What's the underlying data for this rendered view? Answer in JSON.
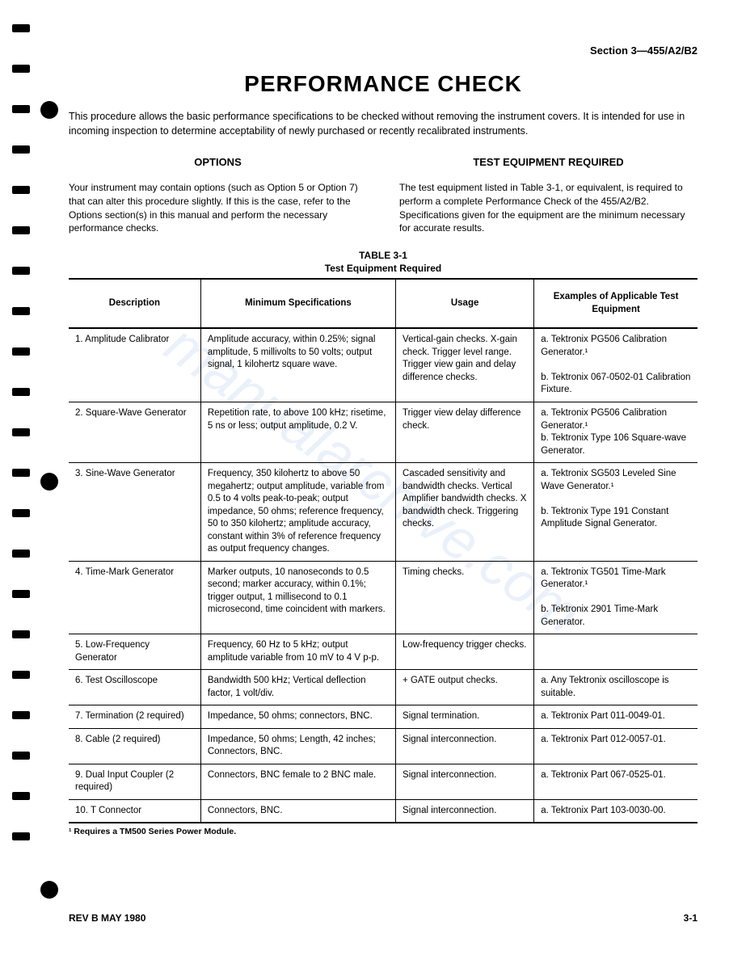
{
  "header": {
    "section_label": "Section 3—455/A2/B2",
    "title": "PERFORMANCE CHECK",
    "intro": "This procedure allows the basic performance specifications to be checked without removing the instrument covers. It is intended for use in incoming inspection to determine acceptability of newly purchased or recently recalibrated instruments."
  },
  "columns": {
    "left": {
      "heading": "OPTIONS",
      "body": "Your instrument may contain options (such as Option 5 or Option 7) that can alter this procedure slightly. If this is the case, refer to the Options section(s) in this manual and perform the necessary performance checks."
    },
    "right": {
      "heading": "TEST EQUIPMENT REQUIRED",
      "body": "The test equipment listed in Table 3-1, or equivalent, is required to perform a complete Performance Check of the 455/A2/B2. Specifications given for the equipment are the minimum necessary for accurate results."
    }
  },
  "table": {
    "caption_line1": "TABLE 3-1",
    "caption_line2": "Test Equipment Required",
    "headers": {
      "description": "Description",
      "specs": "Minimum Specifications",
      "usage": "Usage",
      "examples": "Examples of Applicable Test Equipment"
    },
    "rows": [
      {
        "description": "1. Amplitude Calibrator",
        "specs": "Amplitude accuracy, within 0.25%; signal amplitude, 5 millivolts to 50 volts; output signal, 1 kilohertz square wave.",
        "usage": "Vertical-gain checks. X-gain check. Trigger level range. Trigger view gain and delay difference checks.",
        "examples": "a. Tektronix PG506 Calibration Generator.¹\n\nb. Tektronix 067-0502-01 Calibration Fixture."
      },
      {
        "description": "2. Square-Wave Generator",
        "specs": "Repetition rate, to above 100 kHz; risetime, 5 ns or less; output amplitude, 0.2 V.",
        "usage": "Trigger view delay difference check.",
        "examples": "a. Tektronix PG506 Calibration Generator.¹\nb. Tektronix Type 106 Square-wave Generator."
      },
      {
        "description": "3. Sine-Wave Generator",
        "specs": "Frequency, 350 kilohertz to above 50 megahertz; output amplitude, variable from 0.5 to 4 volts peak-to-peak; output impedance, 50 ohms; reference frequency, 50 to 350 kilohertz; amplitude accuracy, constant within 3% of reference frequency as output frequency changes.",
        "usage": "Cascaded sensitivity and bandwidth checks. Vertical Amplifier bandwidth checks. X bandwidth check. Triggering checks.",
        "examples": "a. Tektronix SG503 Leveled Sine Wave Generator.¹\n\nb. Tektronix Type 191 Constant Amplitude Signal Generator."
      },
      {
        "description": "4. Time-Mark Generator",
        "specs": "Marker outputs, 10 nanoseconds to 0.5 second; marker accuracy, within 0.1%; trigger output, 1 millisecond to 0.1 microsecond, time coincident with markers.",
        "usage": "Timing checks.",
        "examples": "a. Tektronix TG501 Time-Mark Generator.¹\n\nb. Tektronix 2901 Time-Mark Generator."
      },
      {
        "description": "5. Low-Frequency Generator",
        "specs": "Frequency, 60 Hz to 5 kHz; output amplitude variable from 10 mV to 4 V p-p.",
        "usage": "Low-frequency trigger checks.",
        "examples": ""
      },
      {
        "description": "6. Test Oscilloscope",
        "specs": "Bandwidth 500 kHz; Vertical deflection factor, 1 volt/div.",
        "usage": "+ GATE output checks.",
        "examples": "a. Any Tektronix oscilloscope is suitable."
      },
      {
        "description": "7. Termination (2 required)",
        "specs": "Impedance, 50 ohms; connectors, BNC.",
        "usage": "Signal termination.",
        "examples": "a. Tektronix Part 011-0049-01."
      },
      {
        "description": "8. Cable (2 required)",
        "specs": "Impedance, 50 ohms; Length, 42 inches; Connectors, BNC.",
        "usage": "Signal interconnection.",
        "examples": "a. Tektronix Part 012-0057-01."
      },
      {
        "description": "9. Dual Input Coupler (2 required)",
        "specs": "Connectors, BNC female to 2 BNC male.",
        "usage": "Signal interconnection.",
        "examples": "a. Tektronix Part 067-0525-01."
      },
      {
        "description": "10. T Connector",
        "specs": "Connectors, BNC.",
        "usage": "Signal interconnection.",
        "examples": "a. Tektronix Part 103-0030-00."
      }
    ]
  },
  "footnote": "¹ Requires a TM500 Series Power Module.",
  "footer": {
    "left": "REV B MAY 1980",
    "right": "3-1"
  },
  "watermark": "manualarchive.com"
}
